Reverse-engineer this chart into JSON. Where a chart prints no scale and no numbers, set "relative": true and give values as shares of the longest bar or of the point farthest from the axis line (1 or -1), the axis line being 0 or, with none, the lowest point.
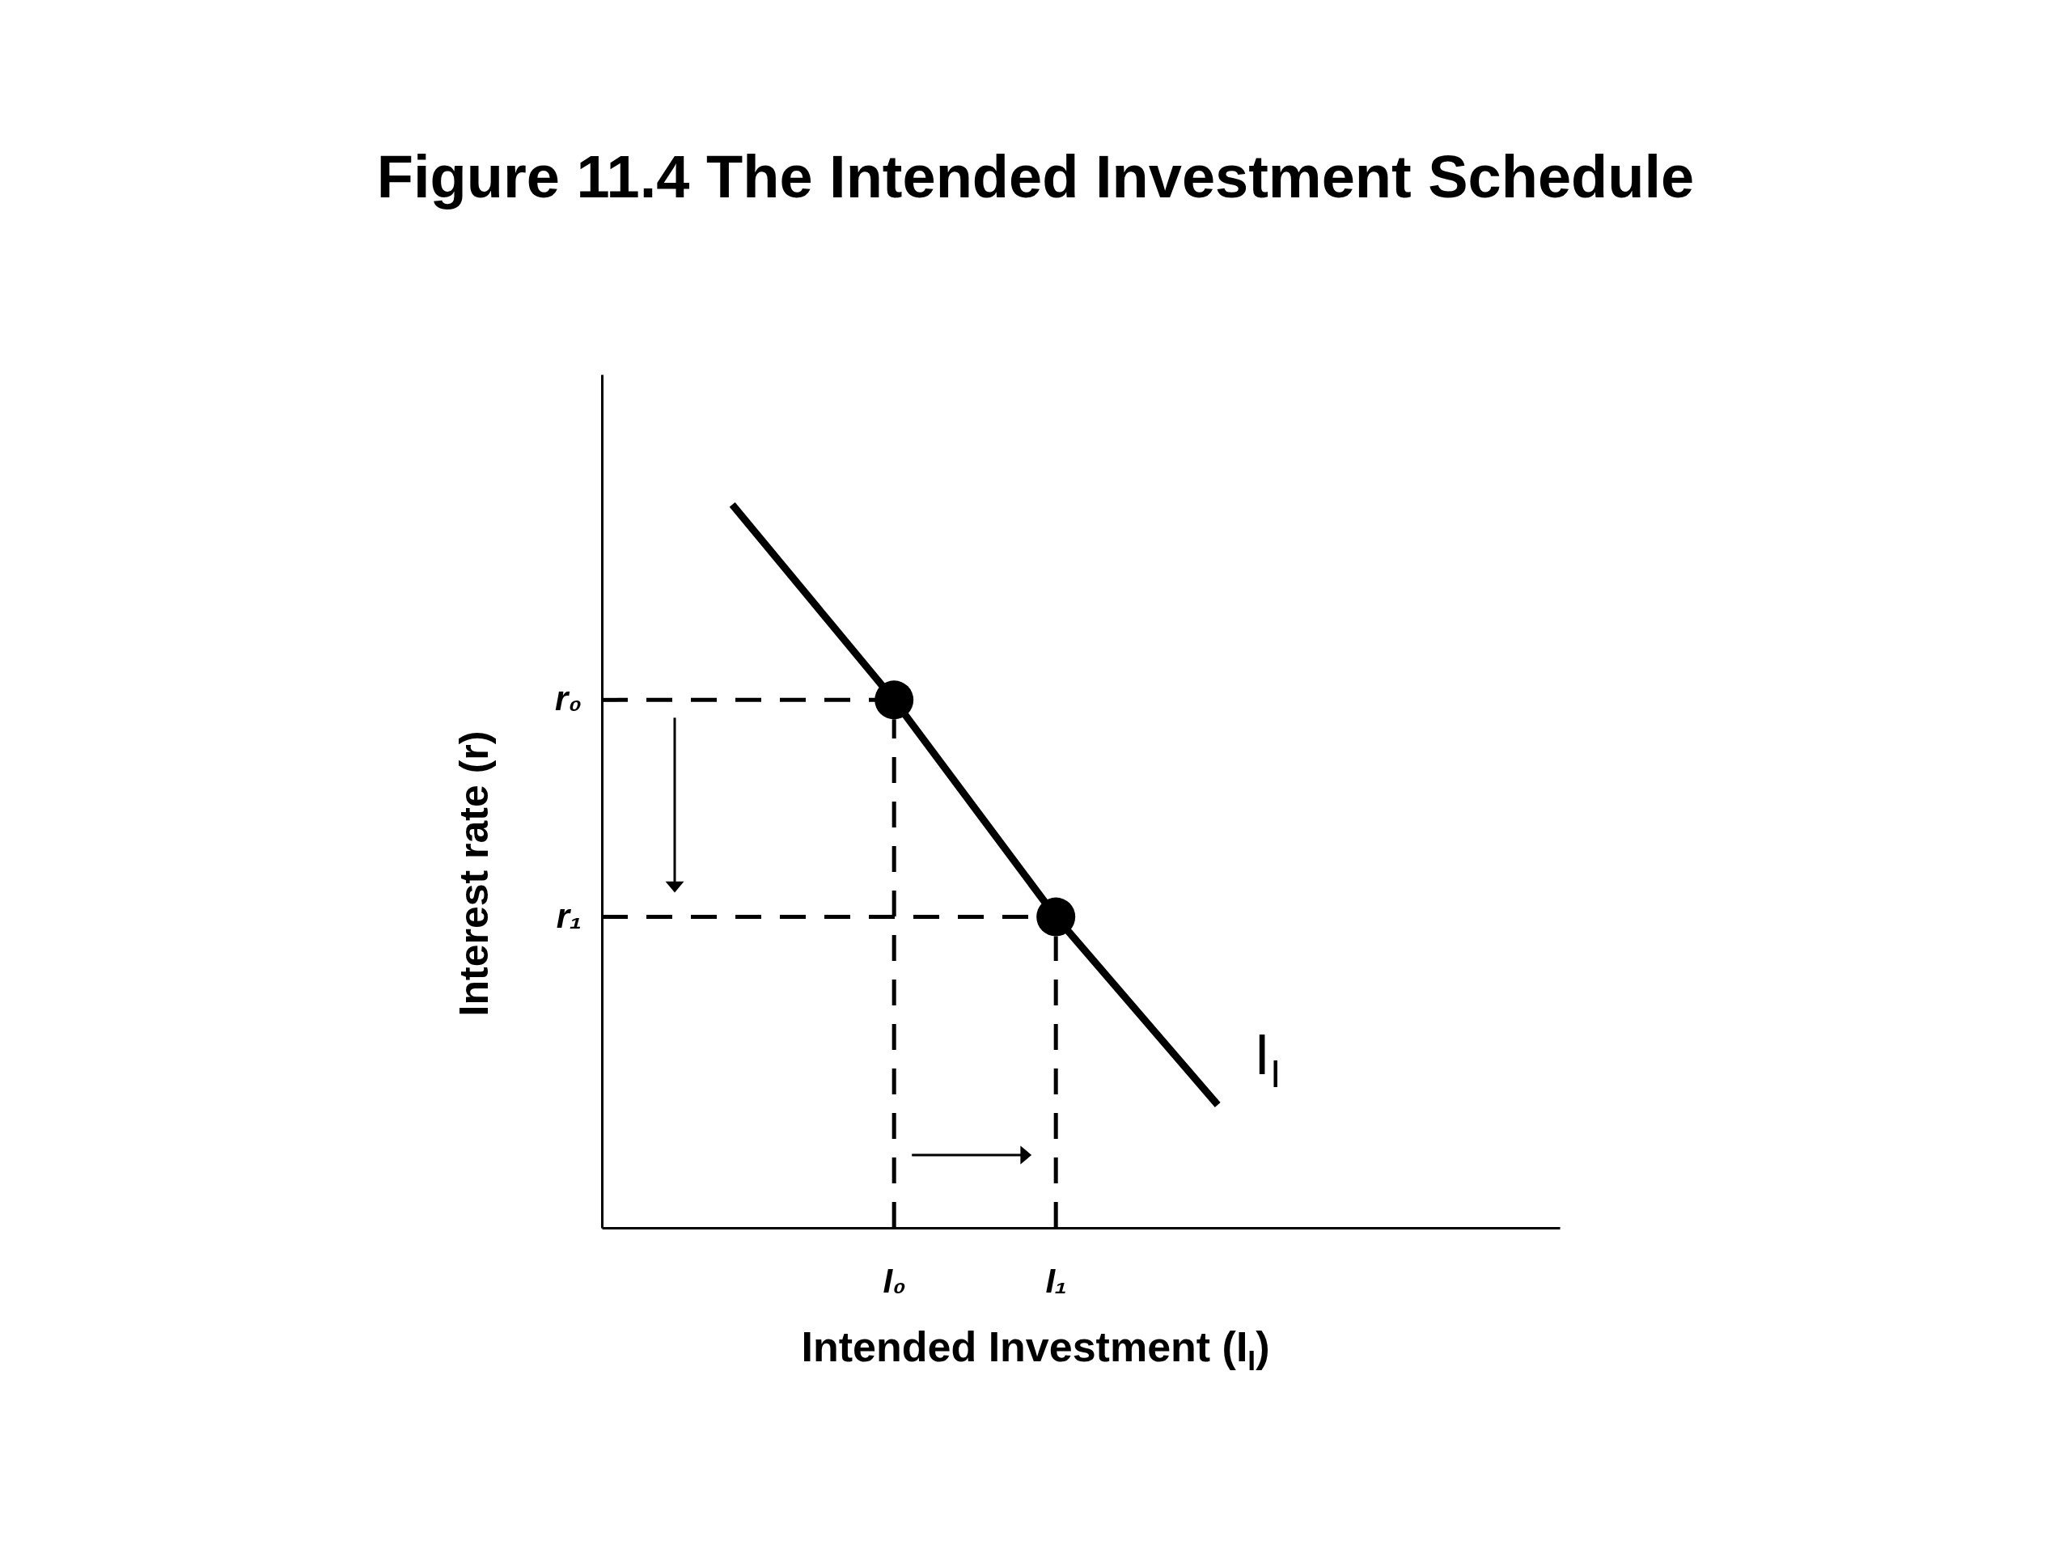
{
  "chart_data": {
    "type": "line",
    "title": "Figure 11.4 The Intended Investment Schedule",
    "xlabel": "Intended Investment (I$_{I}$)",
    "ylabel": "Interest rate (r)",
    "relative": true,
    "categories": [
      null,
      "I₀",
      "I₁",
      null
    ],
    "series": [
      {
        "name": "I$_{I}$",
        "color": "#000000",
        "values": [
          1,
          0.73,
          0.43,
          0.17
        ]
      },
      {
        "type": "scatter",
        "color": "#000000",
        "marker": "circle",
        "values": [
          null,
          0.73,
          0.43,
          null
        ]
      }
    ],
    "ref_lines": [
      {
        "axis": "y",
        "value": 0.73,
        "label": "r₀",
        "color": "#000000",
        "line_style": "dashed"
      },
      {
        "axis": "y",
        "value": 0.43,
        "label": "r₁",
        "color": "#000000",
        "line_style": "dashed"
      },
      {
        "axis": "x",
        "value": "I₀",
        "color": "#000000",
        "line_style": "dashed"
      },
      {
        "axis": "x",
        "value": "I₁",
        "color": "#000000",
        "line_style": "dashed"
      }
    ]
  }
}
